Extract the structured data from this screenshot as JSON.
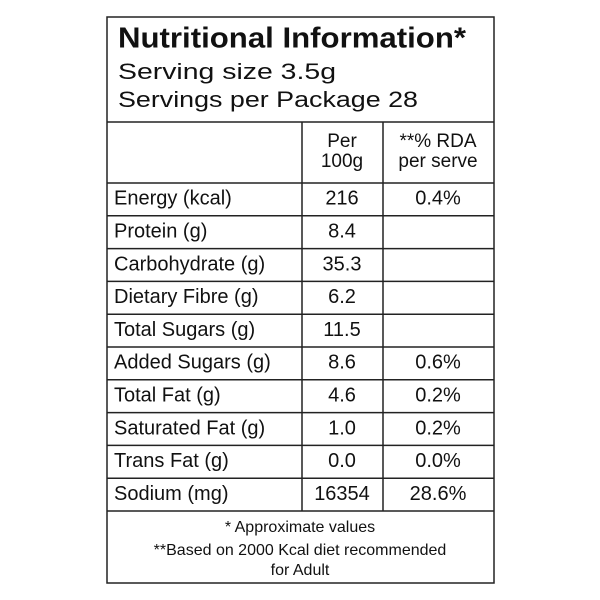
{
  "header": {
    "title": "Nutritional Information*",
    "serving_size": "Serving size 3.5g",
    "servings_per_package": "Servings per Package 28"
  },
  "table": {
    "columns": [
      [
        "Per",
        "100g"
      ],
      [
        "**% RDA",
        "per serve"
      ]
    ],
    "rows": [
      {
        "nutrient": "Energy (kcal)",
        "per_100g": "216",
        "rda": "0.4%"
      },
      {
        "nutrient": "Protein (g)",
        "per_100g": "8.4"
      },
      {
        "nutrient": "Carbohydrate (g)",
        "per_100g": "35.3"
      },
      {
        "nutrient": "Dietary Fibre (g)",
        "per_100g": "6.2"
      },
      {
        "nutrient": "Total Sugars (g)",
        "per_100g": "11.5"
      },
      {
        "nutrient": "Added Sugars (g)",
        "per_100g": "8.6",
        "rda": "0.6%"
      },
      {
        "nutrient": "Total Fat (g)",
        "per_100g": "4.6",
        "rda": "0.2%"
      },
      {
        "nutrient": "Saturated Fat (g)",
        "per_100g": "1.0",
        "rda": "0.2%"
      },
      {
        "nutrient": "Trans Fat (g)",
        "per_100g": "0.0",
        "rda": "0.0%"
      },
      {
        "nutrient": "Sodium (mg)",
        "per_100g": "16354",
        "rda": "28.6%"
      }
    ]
  },
  "footer": {
    "note1": "* Approximate values",
    "note2": [
      "**Based on 2000 Kcal diet recommended",
      "for Adult"
    ]
  }
}
